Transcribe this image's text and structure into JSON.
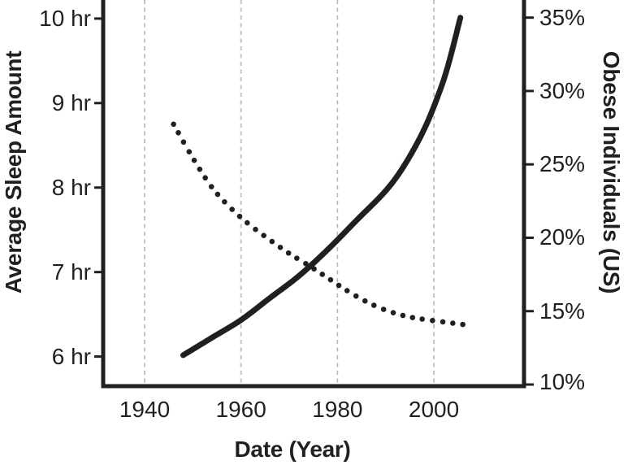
{
  "figure": {
    "background": "#ffffff",
    "ink_color": "#231f20",
    "grid_color": "#b9b9b9"
  },
  "chart_data": {
    "type": "line",
    "title": "",
    "legend": "none",
    "x_axis": {
      "label": "Date (Year)",
      "ticks": [
        1940,
        1960,
        1980,
        2000
      ],
      "range": [
        1931.4,
        2018.7
      ],
      "gridlines": true
    },
    "y_left_axis": {
      "label": "Average Sleep Amount",
      "ticks": [
        6,
        7,
        8,
        9,
        10
      ],
      "tick_labels": [
        "6 hr",
        "7 hr",
        "8 hr",
        "9 hr",
        "10 hr"
      ],
      "range": [
        5.65,
        10.22
      ]
    },
    "y_right_axis": {
      "label": "Obese Individuals (US)",
      "ticks": [
        10,
        15,
        20,
        25,
        30,
        35
      ],
      "tick_labels": [
        "10%",
        "15%",
        "20%",
        "25%",
        "30%",
        "35%"
      ],
      "range": [
        9.89,
        36.2
      ]
    },
    "series": [
      {
        "name": "Average Sleep Amount",
        "axis": "left",
        "style": "dotted",
        "unit": "hr",
        "x": [
          1946,
          1950,
          1954,
          1958,
          1962,
          1966,
          1970,
          1974,
          1978,
          1982,
          1986,
          1990,
          1994,
          1998,
          2002,
          2006
        ],
        "values": [
          8.75,
          8.35,
          8.0,
          7.75,
          7.55,
          7.38,
          7.22,
          7.08,
          6.93,
          6.78,
          6.65,
          6.55,
          6.48,
          6.44,
          6.41,
          6.38
        ]
      },
      {
        "name": "Obese Individuals (US)",
        "axis": "right",
        "style": "solid",
        "unit": "%",
        "x": [
          1948,
          1954,
          1960,
          1966,
          1972,
          1978,
          1984,
          1990,
          1994,
          1998,
          2001,
          2003,
          2005.5
        ],
        "values": [
          12.0,
          13.2,
          14.4,
          15.9,
          17.4,
          19.2,
          21.2,
          23.2,
          25.0,
          27.4,
          29.8,
          31.8,
          35.0
        ]
      }
    ]
  }
}
